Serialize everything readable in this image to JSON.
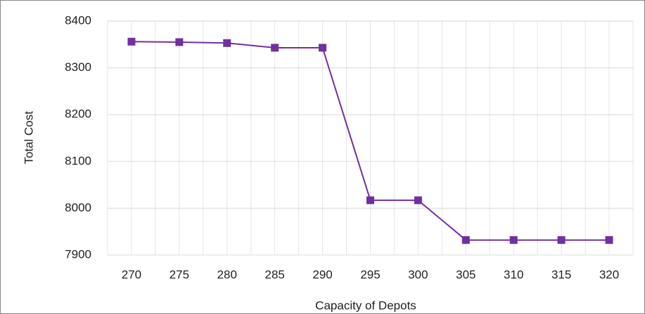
{
  "chart_data": {
    "type": "line",
    "x_label": "Capacity of Depots",
    "y_label": "Total Cost",
    "categories": [
      270,
      275,
      280,
      285,
      290,
      295,
      300,
      305,
      310,
      315,
      320
    ],
    "series": [
      {
        "name": "Total Cost",
        "color": "#7030a0",
        "values": [
          8356,
          8355,
          8353,
          8343,
          8343,
          8017,
          8017,
          7932,
          7932,
          7932,
          7932
        ]
      }
    ],
    "ylim": [
      7900,
      8400
    ],
    "yticks": [
      7900,
      8000,
      8100,
      8200,
      8300,
      8400
    ],
    "grid": true
  }
}
